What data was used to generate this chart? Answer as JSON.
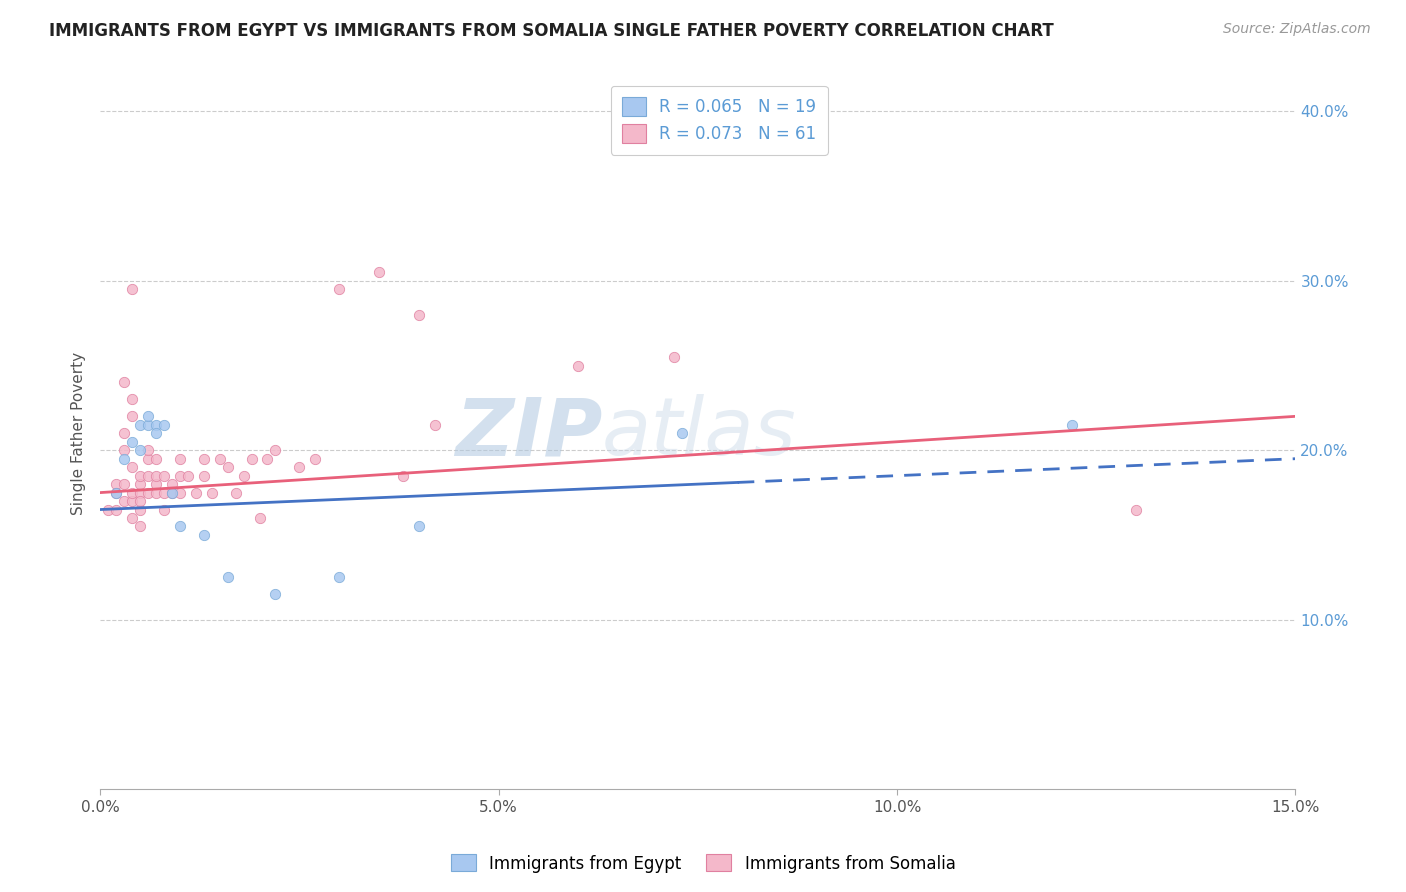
{
  "title": "IMMIGRANTS FROM EGYPT VS IMMIGRANTS FROM SOMALIA SINGLE FATHER POVERTY CORRELATION CHART",
  "source": "Source: ZipAtlas.com",
  "ylabel": "Single Father Poverty",
  "xmin": 0.0,
  "xmax": 0.15,
  "ymin": 0.0,
  "ymax": 0.42,
  "x_tick_labels": [
    "0.0%",
    "5.0%",
    "10.0%",
    "15.0%"
  ],
  "x_tick_vals": [
    0.0,
    0.05,
    0.1,
    0.15
  ],
  "y_tick_labels": [
    "10.0%",
    "20.0%",
    "30.0%",
    "40.0%"
  ],
  "y_tick_vals": [
    0.1,
    0.2,
    0.3,
    0.4
  ],
  "egypt_color": "#A8C8F0",
  "egypt_edge": "#7AAAD8",
  "somalia_color": "#F4B8CA",
  "somalia_edge": "#E080A0",
  "line_egypt_color": "#4472C4",
  "line_somalia_color": "#E8607A",
  "R_egypt": 0.065,
  "N_egypt": 19,
  "R_somalia": 0.073,
  "N_somalia": 61,
  "legend_label_egypt": "Immigrants from Egypt",
  "legend_label_somalia": "Immigrants from Somalia",
  "watermark_zip": "ZIP",
  "watermark_atlas": "atlas",
  "egypt_line_solid_end": 0.08,
  "egypt_line_intercept": 0.165,
  "egypt_line_slope": 0.2,
  "somalia_line_intercept": 0.175,
  "somalia_line_slope": 0.3,
  "egypt_points": [
    [
      0.002,
      0.175
    ],
    [
      0.003,
      0.195
    ],
    [
      0.004,
      0.205
    ],
    [
      0.005,
      0.215
    ],
    [
      0.005,
      0.2
    ],
    [
      0.006,
      0.215
    ],
    [
      0.006,
      0.22
    ],
    [
      0.007,
      0.215
    ],
    [
      0.007,
      0.21
    ],
    [
      0.008,
      0.215
    ],
    [
      0.009,
      0.175
    ],
    [
      0.01,
      0.155
    ],
    [
      0.013,
      0.15
    ],
    [
      0.016,
      0.125
    ],
    [
      0.022,
      0.115
    ],
    [
      0.03,
      0.125
    ],
    [
      0.04,
      0.155
    ],
    [
      0.073,
      0.21
    ],
    [
      0.122,
      0.215
    ]
  ],
  "somalia_points": [
    [
      0.001,
      0.165
    ],
    [
      0.002,
      0.18
    ],
    [
      0.002,
      0.165
    ],
    [
      0.002,
      0.175
    ],
    [
      0.003,
      0.17
    ],
    [
      0.003,
      0.18
    ],
    [
      0.003,
      0.2
    ],
    [
      0.003,
      0.24
    ],
    [
      0.003,
      0.21
    ],
    [
      0.004,
      0.17
    ],
    [
      0.004,
      0.175
    ],
    [
      0.004,
      0.19
    ],
    [
      0.004,
      0.22
    ],
    [
      0.004,
      0.23
    ],
    [
      0.004,
      0.295
    ],
    [
      0.004,
      0.16
    ],
    [
      0.005,
      0.165
    ],
    [
      0.005,
      0.175
    ],
    [
      0.005,
      0.18
    ],
    [
      0.005,
      0.185
    ],
    [
      0.005,
      0.155
    ],
    [
      0.005,
      0.17
    ],
    [
      0.006,
      0.175
    ],
    [
      0.006,
      0.185
    ],
    [
      0.006,
      0.195
    ],
    [
      0.006,
      0.2
    ],
    [
      0.007,
      0.175
    ],
    [
      0.007,
      0.18
    ],
    [
      0.007,
      0.185
    ],
    [
      0.007,
      0.195
    ],
    [
      0.008,
      0.175
    ],
    [
      0.008,
      0.185
    ],
    [
      0.008,
      0.165
    ],
    [
      0.009,
      0.175
    ],
    [
      0.009,
      0.18
    ],
    [
      0.01,
      0.175
    ],
    [
      0.01,
      0.185
    ],
    [
      0.01,
      0.195
    ],
    [
      0.011,
      0.185
    ],
    [
      0.012,
      0.175
    ],
    [
      0.013,
      0.185
    ],
    [
      0.013,
      0.195
    ],
    [
      0.014,
      0.175
    ],
    [
      0.015,
      0.195
    ],
    [
      0.016,
      0.19
    ],
    [
      0.017,
      0.175
    ],
    [
      0.018,
      0.185
    ],
    [
      0.019,
      0.195
    ],
    [
      0.02,
      0.16
    ],
    [
      0.021,
      0.195
    ],
    [
      0.022,
      0.2
    ],
    [
      0.025,
      0.19
    ],
    [
      0.027,
      0.195
    ],
    [
      0.03,
      0.295
    ],
    [
      0.035,
      0.305
    ],
    [
      0.038,
      0.185
    ],
    [
      0.04,
      0.28
    ],
    [
      0.042,
      0.215
    ],
    [
      0.06,
      0.25
    ],
    [
      0.072,
      0.255
    ],
    [
      0.13,
      0.165
    ]
  ]
}
